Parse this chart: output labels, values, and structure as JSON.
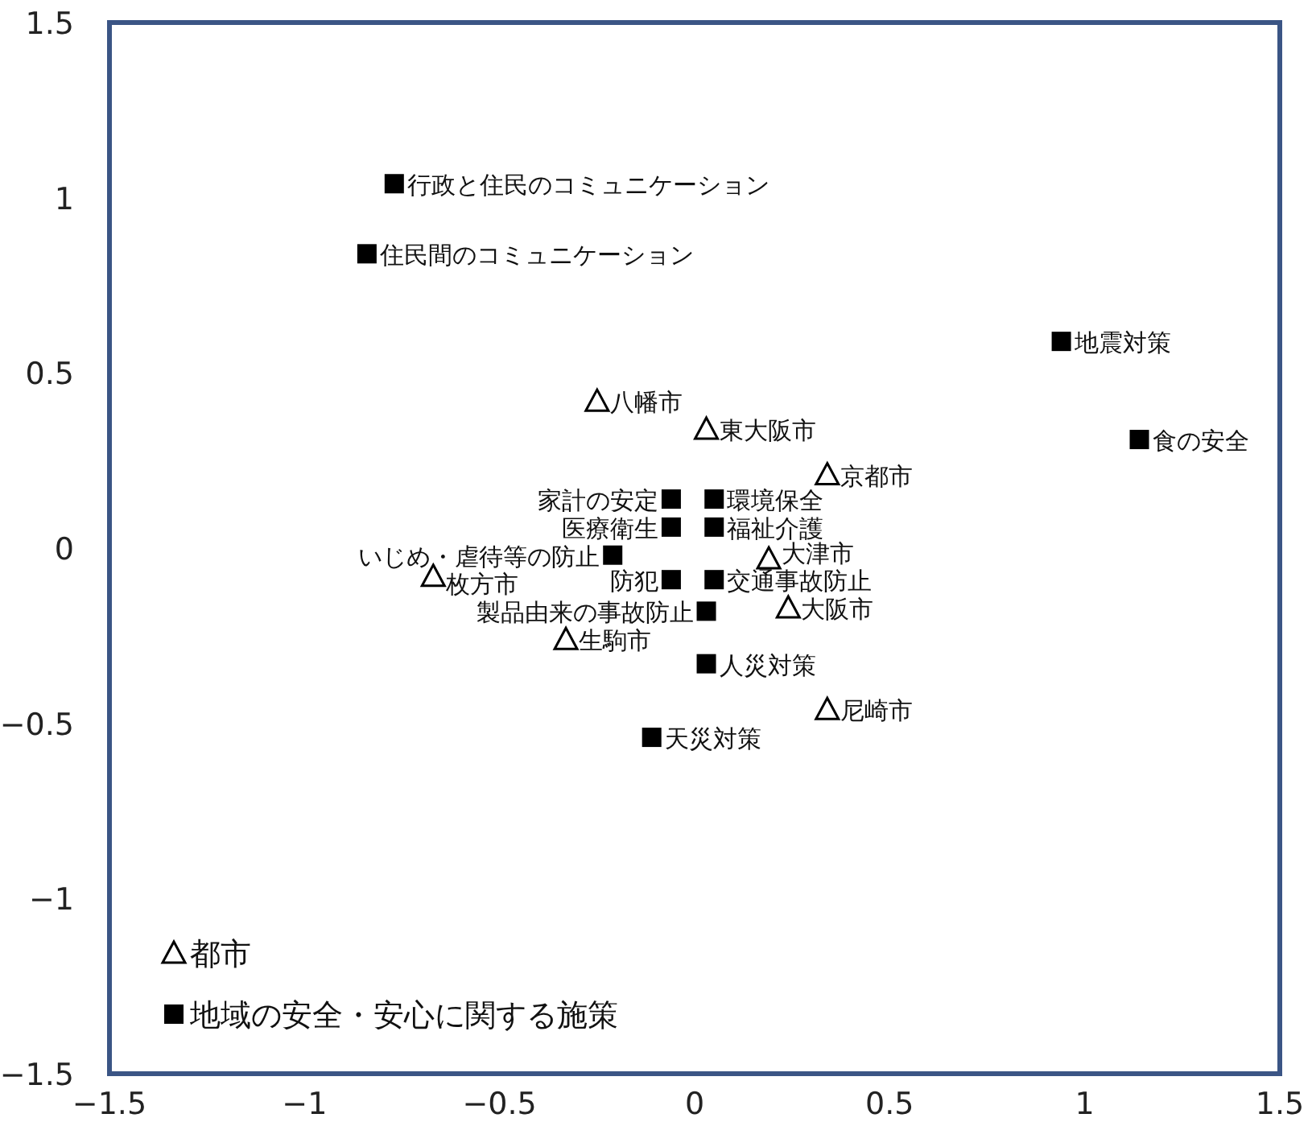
{
  "chart_data": {
    "type": "scatter",
    "xlim": [
      -1.5,
      1.5
    ],
    "ylim": [
      -1.5,
      1.5
    ],
    "xticks": [
      -1.5,
      -1,
      -0.5,
      0,
      0.5,
      1,
      1.5
    ],
    "yticks": [
      -1.5,
      -1,
      -0.5,
      0,
      0.5,
      1,
      1.5
    ],
    "grid": false,
    "legend": "bottom left",
    "series": [
      {
        "name": "都市",
        "marker": "triangle",
        "color": "#000000",
        "x": [
          -0.25,
          0.03,
          0.34,
          0.19,
          -0.67,
          0.24,
          -0.33,
          0.34
        ],
        "values": [
          0.42,
          0.34,
          0.21,
          -0.03,
          -0.08,
          -0.17,
          -0.26,
          -0.46
        ]
      },
      {
        "name": "地域の安全・安心に関する施策",
        "marker": "square",
        "color": "#000000",
        "x": [
          -0.77,
          -0.84,
          0.94,
          1.14,
          -0.06,
          0.05,
          -0.06,
          0.05,
          -0.21,
          -0.06,
          0.05,
          0.03,
          0.03,
          -0.11
        ],
        "values": [
          1.04,
          0.84,
          0.59,
          0.31,
          0.14,
          0.14,
          0.06,
          0.06,
          -0.02,
          -0.09,
          -0.09,
          -0.18,
          -0.33,
          -0.54
        ]
      }
    ],
    "annotations": [
      {
        "text": "八幡市",
        "x": -0.25,
        "y": 0.42
      },
      {
        "text": "東大阪市",
        "x": 0.03,
        "y": 0.34
      },
      {
        "text": "京都市",
        "x": 0.34,
        "y": 0.21
      },
      {
        "text": "大津市",
        "x": 0.19,
        "y": -0.03
      },
      {
        "text": "枚方市",
        "x": -0.67,
        "y": -0.08
      },
      {
        "text": "大阪市",
        "x": 0.24,
        "y": -0.17
      },
      {
        "text": "生駒市",
        "x": -0.33,
        "y": -0.26
      },
      {
        "text": "尼崎市",
        "x": 0.34,
        "y": -0.46
      },
      {
        "text": "行政と住民のコミュニケーション",
        "x": -0.77,
        "y": 1.04
      },
      {
        "text": "住民間のコミュニケーション",
        "x": -0.84,
        "y": 0.84
      },
      {
        "text": "地震対策",
        "x": 0.94,
        "y": 0.59
      },
      {
        "text": "食の安全",
        "x": 1.14,
        "y": 0.31
      },
      {
        "text": "家計の安定",
        "x": -0.06,
        "y": 0.14
      },
      {
        "text": "環境保全",
        "x": 0.05,
        "y": 0.14
      },
      {
        "text": "医療衛生",
        "x": -0.06,
        "y": 0.06
      },
      {
        "text": "福祉介護",
        "x": 0.05,
        "y": 0.06
      },
      {
        "text": "いじめ・虐待等の防止",
        "x": -0.21,
        "y": -0.02
      },
      {
        "text": "防犯",
        "x": -0.06,
        "y": -0.09
      },
      {
        "text": "交通事故防止",
        "x": 0.05,
        "y": -0.09
      },
      {
        "text": "製品由来の事故防止",
        "x": 0.03,
        "y": -0.18
      },
      {
        "text": "人災対策",
        "x": 0.03,
        "y": -0.33
      },
      {
        "text": "天災対策",
        "x": -0.11,
        "y": -0.54
      }
    ]
  }
}
